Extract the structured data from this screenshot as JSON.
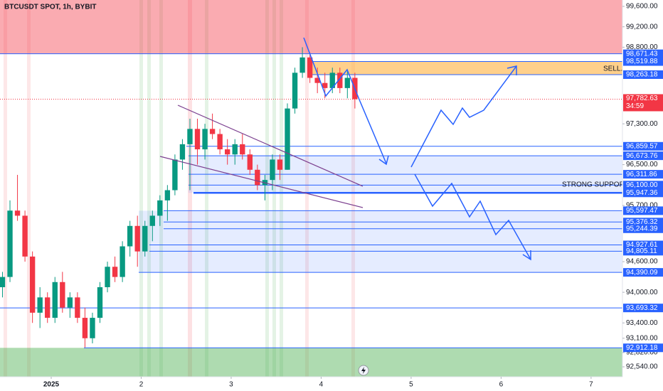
{
  "chart_data": {
    "type": "candlestick",
    "title": "BTCUSDT SPOT, 1h, BYBIT",
    "up_color": "#089981",
    "down_color": "#f23645",
    "xlim": [
      -13.66,
      152.37
    ],
    "ylim": [
      92345,
      99725
    ],
    "xticks": [
      {
        "value": 0,
        "label": "2025"
      },
      {
        "value": 24,
        "label": "2"
      },
      {
        "value": 48,
        "label": "3"
      },
      {
        "value": 72,
        "label": "4"
      },
      {
        "value": 96,
        "label": "5"
      },
      {
        "value": 120,
        "label": "6"
      },
      {
        "value": 144,
        "label": "7"
      }
    ],
    "yticks": [
      {
        "value": 99600,
        "label": "99,600.00"
      },
      {
        "value": 99200,
        "label": "99,200.00"
      },
      {
        "value": 98800,
        "label": "98,800.00"
      },
      {
        "value": 97300,
        "label": "97,300.00"
      },
      {
        "value": 96500,
        "label": "96,500.00"
      },
      {
        "value": 95700,
        "label": "95,700.00"
      },
      {
        "value": 94600,
        "label": "94,600.00"
      },
      {
        "value": 94000,
        "label": "94,000.00"
      },
      {
        "value": 93400,
        "label": "93,400.00"
      },
      {
        "value": 93100,
        "label": "93,100.00"
      },
      {
        "value": 92820,
        "label": "92,820.00"
      },
      {
        "value": 92540,
        "label": "92,540.00"
      }
    ],
    "x": [
      -13,
      -11,
      -9,
      -7,
      -5,
      -3,
      -1,
      1,
      3,
      5,
      7,
      9,
      11,
      13,
      15,
      17,
      19,
      21,
      23,
      25,
      27,
      29,
      31,
      33,
      35,
      37,
      39,
      41,
      43,
      45,
      47,
      49,
      51,
      53,
      55,
      57,
      59,
      61,
      63,
      65,
      67,
      69,
      71,
      73,
      75,
      77,
      79,
      81
    ],
    "open": [
      94100,
      94300,
      95600,
      95500,
      94700,
      93600,
      93900,
      93500,
      94200,
      93700,
      93900,
      93500,
      93100,
      93500,
      94100,
      94500,
      94300,
      94900,
      95300,
      94800,
      95300,
      95500,
      95800,
      96000,
      96600,
      96900,
      97200,
      96800,
      97200,
      97100,
      96800,
      96700,
      96900,
      96700,
      96400,
      96100,
      96200,
      96600,
      96400,
      97600,
      98300,
      98600,
      98200,
      98100,
      98000,
      98300,
      98000,
      98200
    ],
    "high": [
      94400,
      95800,
      96300,
      95600,
      94800,
      94100,
      94000,
      94300,
      94400,
      94000,
      94000,
      93700,
      93600,
      94200,
      94600,
      94700,
      95000,
      95400,
      95500,
      95400,
      95600,
      95900,
      96100,
      96700,
      97000,
      97400,
      97400,
      97300,
      97500,
      97200,
      97000,
      97000,
      97100,
      96800,
      96500,
      96300,
      96700,
      96700,
      97700,
      98400,
      98800,
      98700,
      98400,
      98300,
      98400,
      98400,
      98350,
      98300
    ],
    "low": [
      93900,
      94200,
      95400,
      94600,
      93400,
      93300,
      93400,
      93400,
      93600,
      93500,
      93400,
      92920,
      93000,
      93400,
      94000,
      94200,
      94200,
      94700,
      94500,
      94700,
      95000,
      95300,
      95400,
      95900,
      96400,
      96000,
      96500,
      96600,
      97000,
      96700,
      96500,
      96500,
      96600,
      96300,
      96000,
      95800,
      96000,
      96200,
      96400,
      97500,
      98200,
      98100,
      97900,
      97800,
      97900,
      97900,
      97800,
      97600
    ],
    "close": [
      94300,
      95600,
      95500,
      94700,
      93600,
      93900,
      93500,
      94200,
      93700,
      93900,
      93500,
      93100,
      93500,
      94100,
      94500,
      94300,
      94900,
      95300,
      94800,
      95300,
      95500,
      95800,
      96000,
      96600,
      96900,
      97200,
      96800,
      97200,
      97100,
      96800,
      96700,
      96900,
      96700,
      96400,
      96100,
      96200,
      96600,
      96400,
      97600,
      98300,
      98600,
      98200,
      98100,
      98000,
      98300,
      98000,
      98200,
      97782.63
    ],
    "levels": [
      {
        "value": 98671.43,
        "label": "98,671.43"
      },
      {
        "value": 98519.88,
        "label": "98,519.88"
      },
      {
        "value": 98263.18,
        "label": "98,263.18"
      },
      {
        "value": 96859.57,
        "label": "96,859.57"
      },
      {
        "value": 96673.76,
        "label": "96,673.76"
      },
      {
        "value": 96311.86,
        "label": "96,311.86"
      },
      {
        "value": 96100.0,
        "label": "96,100.00"
      },
      {
        "value": 95947.36,
        "label": "95,947.36"
      },
      {
        "value": 95597.47,
        "label": "95,597.47"
      },
      {
        "value": 95376.32,
        "label": "95,376.32"
      },
      {
        "value": 95244.39,
        "label": "95,244.39"
      },
      {
        "value": 94927.61,
        "label": "94,927.61"
      },
      {
        "value": 94805.11,
        "label": "94,805.11"
      },
      {
        "value": 94390.09,
        "label": "94,390.09"
      },
      {
        "value": 93693.32,
        "label": "93,693.32"
      },
      {
        "value": 92912.18,
        "label": "92,912.18"
      }
    ],
    "last_price": {
      "value": 97782.63,
      "label": "97,782.63"
    },
    "countdown": "34:59",
    "zones": [
      {
        "low": 98671.43,
        "high": 99725,
        "color": "rgba(242,54,69,0.42)"
      },
      {
        "low": 98263.18,
        "high": 98519.88,
        "color": "rgba(255,183,77,0.65)"
      },
      {
        "low": 95947.36,
        "high": 96673.76,
        "color": "rgba(41,98,255,0.12)"
      },
      {
        "low": 94390.09,
        "high": 95597.47,
        "color": "rgba(41,98,255,0.12)"
      },
      {
        "low": 92345,
        "high": 92912.18,
        "color": "rgba(76,175,80,0.45)"
      }
    ],
    "annotations": [
      "SELL.",
      "STRONG SUPPORT"
    ]
  }
}
